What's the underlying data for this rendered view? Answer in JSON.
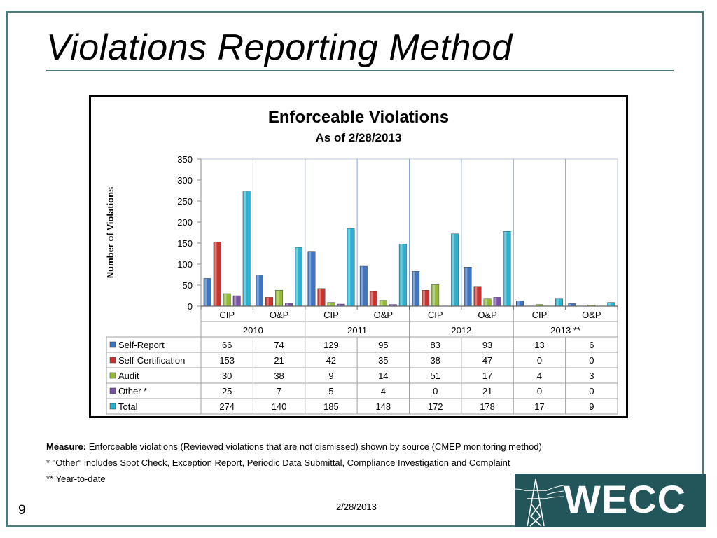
{
  "slide": {
    "title": "Violations Reporting Method",
    "page_number": "9",
    "footer_date": "2/28/2013",
    "logo_text": "WECC"
  },
  "footnotes": {
    "measure_label": "Measure:",
    "measure_text": " Enforceable violations (Reviewed violations that are not dismissed) shown by source (CMEP monitoring method)",
    "note1": "* \"Other\" includes Spot Check, Exception Report, Periodic Data Submittal, Compliance Investigation and Complaint",
    "note2": "** Year-to-date"
  },
  "chart_data": {
    "type": "bar",
    "title": "Enforceable Violations",
    "subtitle": "As of 2/28/2013",
    "ylabel": "Number of Violations",
    "xlabel": "",
    "ylim": [
      0,
      350
    ],
    "yticks": [
      0,
      50,
      100,
      150,
      200,
      250,
      300,
      350
    ],
    "grid": false,
    "legend": "data-table",
    "categories": [
      "CIP",
      "O&P",
      "CIP",
      "O&P",
      "CIP",
      "O&P",
      "CIP",
      "O&P"
    ],
    "groups": [
      {
        "label": "2010",
        "span": 2
      },
      {
        "label": "2011",
        "span": 2
      },
      {
        "label": "2012",
        "span": 2
      },
      {
        "label": "2013 **",
        "span": 2
      }
    ],
    "series": [
      {
        "name": "Self-Report",
        "color": "#3e74c0",
        "values": [
          66,
          74,
          129,
          95,
          83,
          93,
          13,
          6
        ]
      },
      {
        "name": "Self-Certification",
        "color": "#c83530",
        "values": [
          153,
          21,
          42,
          35,
          38,
          47,
          0,
          0
        ]
      },
      {
        "name": "Audit",
        "color": "#94ba3c",
        "values": [
          30,
          38,
          9,
          14,
          51,
          17,
          4,
          3
        ]
      },
      {
        "name": "Other *",
        "color": "#7a52a4",
        "values": [
          25,
          7,
          5,
          4,
          0,
          21,
          0,
          0
        ]
      },
      {
        "name": "Total",
        "color": "#2eb1cf",
        "values": [
          274,
          140,
          185,
          148,
          172,
          178,
          17,
          9
        ]
      }
    ]
  }
}
